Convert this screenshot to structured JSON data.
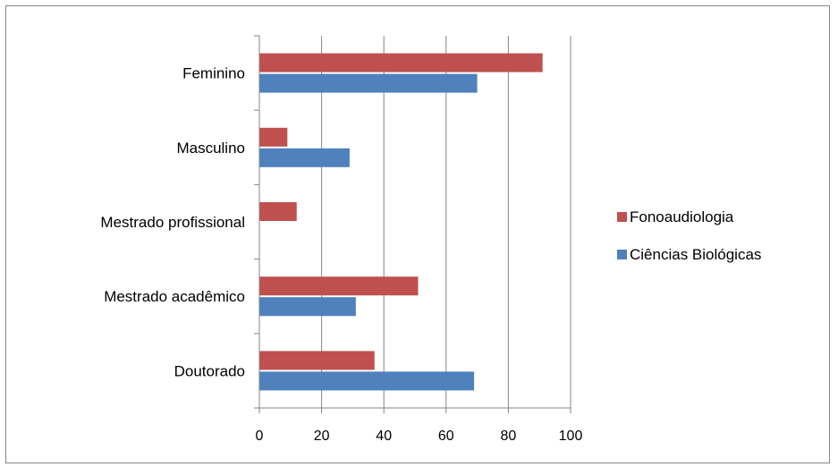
{
  "chart_data": {
    "type": "bar",
    "orientation": "horizontal",
    "categories": [
      "Feminino",
      "Masculino",
      "Mestrado profissional",
      "Mestrado acadêmico",
      "Doutorado"
    ],
    "series": [
      {
        "name": "Fonoaudiologia",
        "color": "#C0504D",
        "values": [
          91,
          9,
          12,
          51,
          37
        ]
      },
      {
        "name": "Ciências Biológicas",
        "color": "#4F81BD",
        "values": [
          70,
          29,
          0,
          31,
          69
        ]
      }
    ],
    "xlim": [
      0,
      100
    ],
    "xticks": [
      "0",
      "20",
      "40",
      "60",
      "80",
      "100"
    ],
    "grid": true,
    "legend_position": "right"
  }
}
